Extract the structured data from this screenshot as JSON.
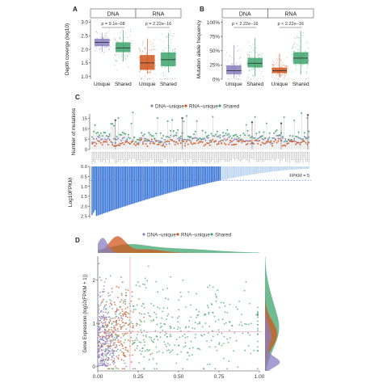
{
  "colors": {
    "dna_unique": "#8a7fc0",
    "rna_unique": "#d2551c",
    "shared": "#3fa56e",
    "lightblue": "#b9d3ee",
    "blue": "#2f6fd6",
    "grid": "#dddddd",
    "strip": "#ffffff",
    "guide": "#e7a8b8"
  },
  "panels": {
    "a": {
      "letter": "A"
    },
    "b": {
      "letter": "B"
    },
    "c": {
      "letter": "C"
    },
    "d": {
      "letter": "D"
    }
  },
  "chart_data": [
    {
      "panel": "A",
      "type": "box",
      "facets": [
        "DNA",
        "RNA"
      ],
      "categories": [
        "Unique",
        "Shared"
      ],
      "ylabel": "Depth coverge (log10)",
      "yticks": [
        1.0,
        1.5,
        2.0,
        2.5,
        3.0
      ],
      "ylim": [
        0.9,
        3.1
      ],
      "pvalues": [
        "p = 9.1e−08",
        "p = 2.22e−16"
      ],
      "boxes": [
        {
          "facet": "DNA",
          "category": "Unique",
          "q1": 2.12,
          "median": 2.25,
          "q3": 2.38,
          "low": 1.9,
          "high": 2.6
        },
        {
          "facet": "DNA",
          "category": "Shared",
          "q1": 1.9,
          "median": 2.05,
          "q3": 2.25,
          "low": 1.55,
          "high": 2.7
        },
        {
          "facet": "RNA",
          "category": "Unique",
          "q1": 1.25,
          "median": 1.5,
          "q3": 1.78,
          "low": 1.1,
          "high": 2.4
        },
        {
          "facet": "RNA",
          "category": "Shared",
          "q1": 1.38,
          "median": 1.62,
          "q3": 1.88,
          "low": 1.15,
          "high": 2.6
        }
      ]
    },
    {
      "panel": "B",
      "type": "box",
      "facets": [
        "DNA",
        "RNA"
      ],
      "categories": [
        "Unique",
        "Shared"
      ],
      "ylabel": "Mutation allele frequency",
      "yticks": [
        "0%",
        "25%",
        "50%",
        "75%",
        "100%"
      ],
      "ytick_values": [
        0,
        25,
        50,
        75,
        100
      ],
      "ylim": [
        0,
        105
      ],
      "pvalues": [
        "p < 2.22e−16",
        "p < 2.22e−16"
      ],
      "boxes": [
        {
          "facet": "DNA",
          "category": "Unique",
          "q1": 9,
          "median": 15,
          "q3": 24,
          "low": 2,
          "high": 60
        },
        {
          "facet": "DNA",
          "category": "Shared",
          "q1": 21,
          "median": 28,
          "q3": 37,
          "low": 5,
          "high": 72
        },
        {
          "facet": "RNA",
          "category": "Unique",
          "q1": 11,
          "median": 15,
          "q3": 20,
          "low": 3,
          "high": 45
        },
        {
          "facet": "RNA",
          "category": "Shared",
          "q1": 27,
          "median": 37,
          "q3": 47,
          "low": 8,
          "high": 85
        }
      ]
    },
    {
      "panel": "C",
      "type": "lollipop+bar",
      "legend": [
        "DNA−unique",
        "RNA−unique",
        "Shared"
      ],
      "ylabel_top": "Number of mutations",
      "yticks_top": [
        0,
        5,
        10,
        15
      ],
      "ylabel_bottom": "Log10FPKM",
      "yticks_bottom": [
        "0.0",
        "0.5",
        "1.0",
        "1.5",
        "2.0",
        "2.5"
      ],
      "threshold_label": "FPKM = 5",
      "threshold_value": 0.7,
      "n_genes": 150,
      "bar_max": 2.45,
      "bar_min": 0.12
    },
    {
      "panel": "D",
      "type": "scatter",
      "legend": [
        "DNA−unique",
        "RNA−unique",
        "Shared"
      ],
      "ylabel": "Gene Expression (log10(FPKM + 1))",
      "xticks": [
        "0.00",
        "0.25",
        "0.50",
        "0.75",
        "1.00"
      ],
      "xtick_values": [
        0,
        0.25,
        0.5,
        0.75,
        1.0
      ],
      "yticks": [
        0,
        1,
        2
      ],
      "xlim": [
        0,
        1.0
      ],
      "ylim": [
        -0.1,
        2.55
      ],
      "vline_x": 0.2,
      "hline_y": 0.8
    }
  ]
}
